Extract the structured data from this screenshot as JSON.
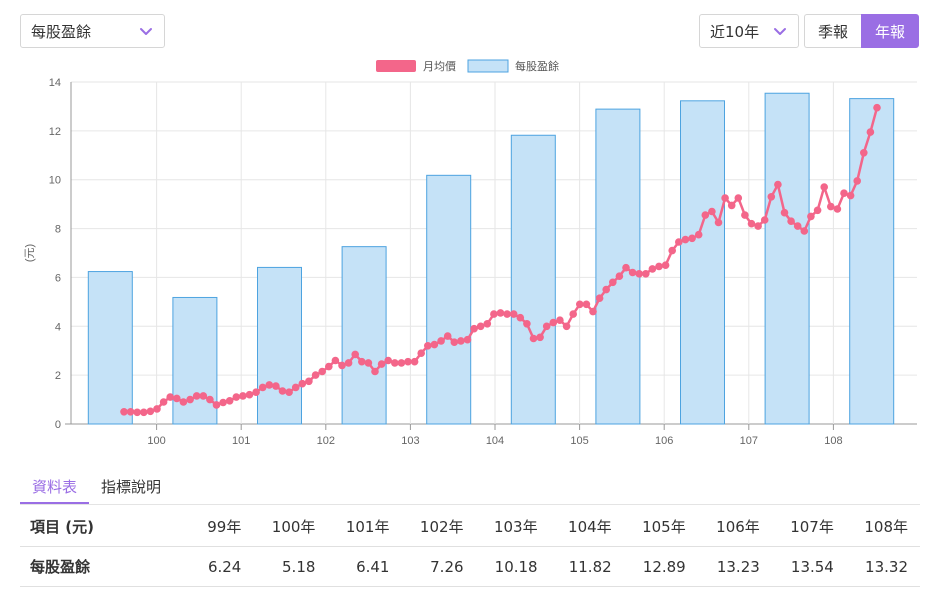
{
  "controls": {
    "metric": "每股盈餘",
    "range": "近10年",
    "period_quarter": "季報",
    "period_year": "年報"
  },
  "colors": {
    "accent": "#9a6ee4",
    "price_line": "#f3668a",
    "bar_fill": "#c5e2f7",
    "bar_stroke": "#4da3e0"
  },
  "tabs": [
    "資料表",
    "指標說明"
  ],
  "table": {
    "header_label": "項目 (元)",
    "years": [
      "99年",
      "100年",
      "101年",
      "102年",
      "103年",
      "104年",
      "105年",
      "106年",
      "107年",
      "108年"
    ],
    "row_label": "每股盈餘",
    "values": [
      "6.24",
      "5.18",
      "6.41",
      "7.26",
      "10.18",
      "11.82",
      "12.89",
      "13.23",
      "13.54",
      "13.32"
    ]
  },
  "chart_data": {
    "type": "bar",
    "ylabel": "(元)",
    "ylim": [
      0,
      14
    ],
    "yticks": [
      0,
      2,
      4,
      6,
      8,
      10,
      12,
      14
    ],
    "xtick_labels": [
      "100",
      "101",
      "102",
      "103",
      "104",
      "105",
      "106",
      "107",
      "108"
    ],
    "grid": true,
    "legend_position": "top",
    "series": [
      {
        "name": "月均價",
        "type": "line",
        "values": [
          0.5,
          0.5,
          0.48,
          0.48,
          0.52,
          0.62,
          0.9,
          1.1,
          1.05,
          0.9,
          1.0,
          1.15,
          1.15,
          1.0,
          0.78,
          0.88,
          0.95,
          1.1,
          1.15,
          1.2,
          1.3,
          1.5,
          1.6,
          1.55,
          1.35,
          1.3,
          1.5,
          1.65,
          1.75,
          2.0,
          2.15,
          2.35,
          2.6,
          2.4,
          2.5,
          2.85,
          2.55,
          2.5,
          2.15,
          2.45,
          2.6,
          2.5,
          2.5,
          2.55,
          2.55,
          2.9,
          3.2,
          3.25,
          3.4,
          3.6,
          3.35,
          3.4,
          3.45,
          3.9,
          4.0,
          4.1,
          4.5,
          4.55,
          4.5,
          4.5,
          4.35,
          4.1,
          3.5,
          3.55,
          4.0,
          4.15,
          4.25,
          4.0,
          4.5,
          4.9,
          4.9,
          4.6,
          5.15,
          5.5,
          5.8,
          6.05,
          6.4,
          6.2,
          6.15,
          6.15,
          6.35,
          6.45,
          6.5,
          7.1,
          7.45,
          7.55,
          7.6,
          7.75,
          8.55,
          8.7,
          8.25,
          9.25,
          8.95,
          9.25,
          8.55,
          8.2,
          8.1,
          8.35,
          9.3,
          9.8,
          8.65,
          8.3,
          8.1,
          7.9,
          8.5,
          8.75,
          9.7,
          8.9,
          8.8,
          9.45,
          9.35,
          9.95,
          11.1,
          11.95,
          12.95
        ]
      },
      {
        "name": "每股盈餘",
        "type": "bar",
        "categories": [
          "99",
          "100",
          "101",
          "102",
          "103",
          "104",
          "105",
          "106",
          "107",
          "108"
        ],
        "values": [
          6.24,
          5.18,
          6.41,
          7.26,
          10.18,
          11.82,
          12.89,
          13.23,
          13.54,
          13.32
        ]
      }
    ]
  }
}
